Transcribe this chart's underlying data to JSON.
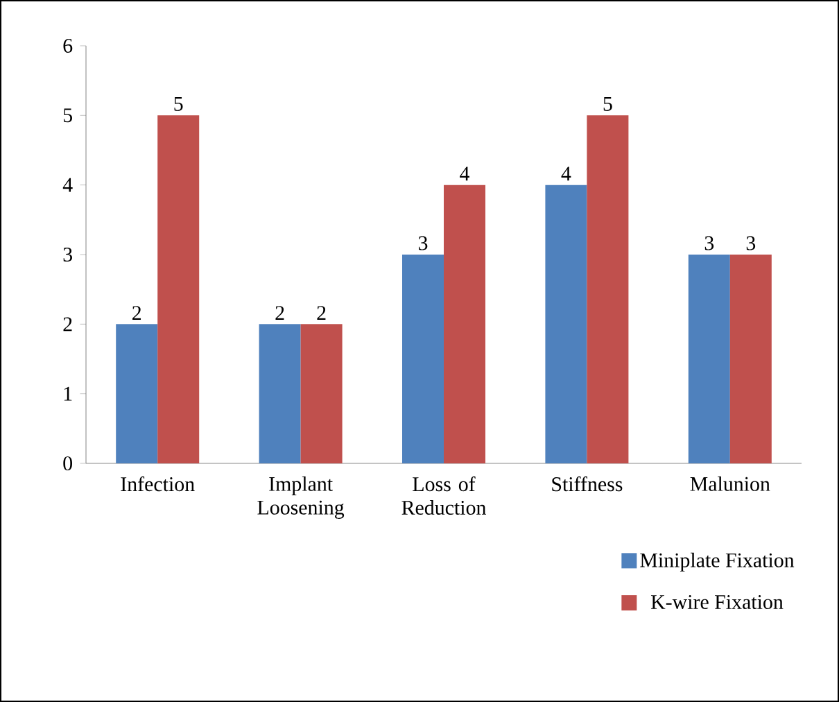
{
  "chart_data": {
    "type": "bar",
    "categories": [
      "Infection",
      "Implant Loosening",
      "Loss of Reduction",
      "Stiffness",
      "Malunion"
    ],
    "series": [
      {
        "name": "Miniplate Fixation",
        "color": "#4f81bd",
        "values": [
          2,
          2,
          3,
          4,
          3
        ]
      },
      {
        "name": "K-wire Fixation",
        "color": "#c0504d",
        "values": [
          5,
          2,
          4,
          5,
          3
        ]
      }
    ],
    "ylim": [
      0,
      6
    ],
    "yticks": [
      0,
      1,
      2,
      3,
      4,
      5,
      6
    ],
    "data_labels": true,
    "legend": "bottom right",
    "grid": false
  }
}
